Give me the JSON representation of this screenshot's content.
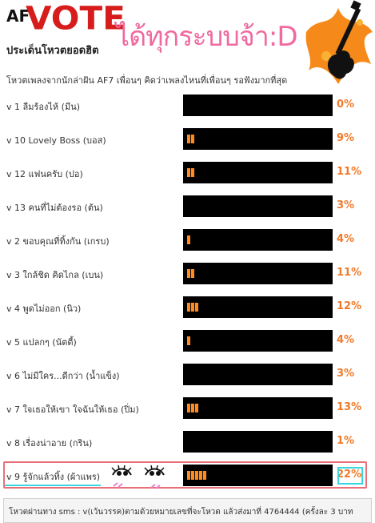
{
  "header": {
    "logo_small": "AF",
    "logo_big": "VOTE",
    "tagline": "ได้ทุกระบบจ้า:D",
    "section_title": "ประเด็นโหวตยอดฮิต",
    "description": "โหวตเพลงจากนักล่าฝัน AF7 เพื่อนๆ คิดว่าเพลงไหนที่เพื่อนๆ รอฟังมากที่สุด"
  },
  "options": [
    {
      "label": "v 1 ลืมร้องไห้ (มีน)",
      "percent": "0%",
      "segments": 0
    },
    {
      "label": "v 10 Lovely Boss (บอส)",
      "percent": "9%",
      "segments": 2
    },
    {
      "label": "v 12 แฟนครับ (ปอ)",
      "percent": "11%",
      "segments": 2
    },
    {
      "label": "v 13 คนที่ไม่ต้องรอ (ต้น)",
      "percent": "3%",
      "segments": 0
    },
    {
      "label": "v 2 ขอบคุณที่ทิ้งกัน (เกรบ)",
      "percent": "4%",
      "segments": 1
    },
    {
      "label": "v 3 ใกล้ชิด คิดไกล (เบน)",
      "percent": "11%",
      "segments": 2
    },
    {
      "label": "v 4 พูดไม่ออก (นิว)",
      "percent": "12%",
      "segments": 3
    },
    {
      "label": "v 5 แปลกๆ (นัตตี้)",
      "percent": "4%",
      "segments": 1
    },
    {
      "label": "v 6 ไม่มีใคร...ดีกว่า (น้ำแข็ง)",
      "percent": "3%",
      "segments": 0
    },
    {
      "label": "v 7 ใจเธอให้เขา ใจฉันให้เธอ (ปิ่ม)",
      "percent": "13%",
      "segments": 3
    },
    {
      "label": "v 8 เรื่องน่าอาย (กริน)",
      "percent": "1%",
      "segments": 0
    },
    {
      "label": "v 9 รู้จักแล้วทิ้ง (ผ้าแพร)",
      "percent": "22%",
      "segments": 5
    }
  ],
  "footer": {
    "text": "โหวตผ่านทาง sms : v(เว้นวรรค)ตามด้วยหมายเลขที่จะโหวต แล้วส่งมาที่ 4764444 (ครั้งละ 3 บาท"
  },
  "colors": {
    "accent": "#f07a29",
    "bar_fill": "#ff8a1f",
    "logo_red": "#d71c1c",
    "tagline_pink": "#ef6aa0",
    "highlight_red": "#e9707a",
    "highlight_cyan": "#3ad6e0"
  }
}
